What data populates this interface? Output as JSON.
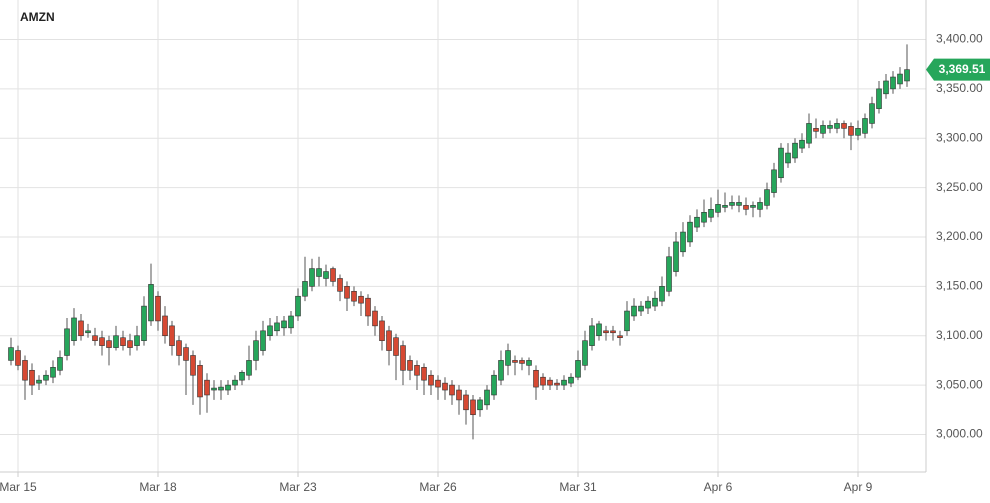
{
  "chart_data": {
    "type": "candlestick",
    "title": "AMZN",
    "categories": [
      null,
      "Mar 15",
      null,
      null,
      null,
      null,
      null,
      null,
      null,
      null,
      null,
      null,
      null,
      null,
      null,
      null,
      null,
      null,
      null,
      null,
      null,
      "Mar 18",
      null,
      null,
      null,
      null,
      null,
      null,
      null,
      null,
      null,
      null,
      null,
      null,
      null,
      null,
      null,
      null,
      null,
      null,
      null,
      "Mar 23",
      null,
      null,
      null,
      null,
      null,
      null,
      null,
      null,
      null,
      null,
      null,
      null,
      null,
      null,
      null,
      null,
      null,
      null,
      null,
      "Mar 26",
      null,
      null,
      null,
      null,
      null,
      null,
      null,
      null,
      null,
      null,
      null,
      null,
      null,
      null,
      null,
      null,
      null,
      null,
      null,
      "Mar 31",
      null,
      null,
      null,
      null,
      null,
      null,
      null,
      null,
      null,
      null,
      null,
      null,
      null,
      null,
      null,
      null,
      null,
      null,
      null,
      "Apr 6",
      null,
      null,
      null,
      null,
      null,
      null,
      null,
      null,
      null,
      null,
      null,
      null,
      null,
      null,
      null,
      null,
      null,
      null,
      null,
      "Apr 9",
      null,
      null,
      null,
      null,
      null,
      null,
      null
    ],
    "ohlc": [
      [
        3075,
        3098,
        3070,
        3088
      ],
      [
        3085,
        3090,
        3065,
        3070
      ],
      [
        3075,
        3080,
        3035,
        3055
      ],
      [
        3065,
        3072,
        3040,
        3050
      ],
      [
        3052,
        3060,
        3045,
        3055
      ],
      [
        3055,
        3065,
        3050,
        3060
      ],
      [
        3058,
        3075,
        3052,
        3068
      ],
      [
        3065,
        3085,
        3060,
        3078
      ],
      [
        3080,
        3118,
        3075,
        3107
      ],
      [
        3095,
        3128,
        3090,
        3118
      ],
      [
        3115,
        3122,
        3095,
        3100
      ],
      [
        3103,
        3112,
        3098,
        3105
      ],
      [
        3100,
        3108,
        3090,
        3095
      ],
      [
        3098,
        3105,
        3080,
        3090
      ],
      [
        3095,
        3100,
        3070,
        3088
      ],
      [
        3088,
        3110,
        3085,
        3100
      ],
      [
        3098,
        3105,
        3085,
        3090
      ],
      [
        3095,
        3102,
        3080,
        3088
      ],
      [
        3090,
        3110,
        3085,
        3100
      ],
      [
        3095,
        3140,
        3090,
        3130
      ],
      [
        3115,
        3173,
        3110,
        3152
      ],
      [
        3140,
        3145,
        3105,
        3115
      ],
      [
        3120,
        3130,
        3092,
        3100
      ],
      [
        3110,
        3115,
        3080,
        3090
      ],
      [
        3095,
        3100,
        3070,
        3080
      ],
      [
        3088,
        3092,
        3040,
        3075
      ],
      [
        3080,
        3085,
        3030,
        3060
      ],
      [
        3070,
        3075,
        3020,
        3038
      ],
      [
        3055,
        3062,
        3022,
        3040
      ],
      [
        3045,
        3055,
        3035,
        3047
      ],
      [
        3045,
        3055,
        3035,
        3048
      ],
      [
        3045,
        3055,
        3040,
        3050
      ],
      [
        3050,
        3060,
        3045,
        3055
      ],
      [
        3055,
        3065,
        3050,
        3063
      ],
      [
        3060,
        3090,
        3055,
        3075
      ],
      [
        3075,
        3105,
        3065,
        3095
      ],
      [
        3085,
        3115,
        3080,
        3105
      ],
      [
        3100,
        3118,
        3095,
        3110
      ],
      [
        3105,
        3120,
        3100,
        3113
      ],
      [
        3108,
        3120,
        3100,
        3115
      ],
      [
        3108,
        3125,
        3102,
        3120
      ],
      [
        3120,
        3148,
        3115,
        3140
      ],
      [
        3140,
        3180,
        3135,
        3155
      ],
      [
        3150,
        3178,
        3145,
        3168
      ],
      [
        3160,
        3180,
        3150,
        3168
      ],
      [
        3158,
        3172,
        3150,
        3165
      ],
      [
        3168,
        3170,
        3150,
        3155
      ],
      [
        3158,
        3162,
        3135,
        3145
      ],
      [
        3150,
        3155,
        3125,
        3138
      ],
      [
        3145,
        3150,
        3130,
        3135
      ],
      [
        3140,
        3145,
        3120,
        3133
      ],
      [
        3138,
        3142,
        3110,
        3120
      ],
      [
        3125,
        3130,
        3100,
        3110
      ],
      [
        3115,
        3120,
        3085,
        3095
      ],
      [
        3105,
        3110,
        3070,
        3085
      ],
      [
        3098,
        3102,
        3055,
        3080
      ],
      [
        3090,
        3095,
        3050,
        3065
      ],
      [
        3075,
        3080,
        3055,
        3065
      ],
      [
        3070,
        3075,
        3045,
        3060
      ],
      [
        3068,
        3072,
        3040,
        3055
      ],
      [
        3060,
        3065,
        3040,
        3050
      ],
      [
        3055,
        3060,
        3035,
        3048
      ],
      [
        3052,
        3058,
        3035,
        3045
      ],
      [
        3050,
        3055,
        3030,
        3040
      ],
      [
        3045,
        3050,
        3020,
        3035
      ],
      [
        3040,
        3045,
        3010,
        3025
      ],
      [
        3035,
        3040,
        2995,
        3020
      ],
      [
        3025,
        3038,
        3018,
        3035
      ],
      [
        3030,
        3050,
        3025,
        3045
      ],
      [
        3040,
        3065,
        3035,
        3060
      ],
      [
        3055,
        3085,
        3050,
        3075
      ],
      [
        3070,
        3092,
        3060,
        3085
      ],
      [
        3075,
        3080,
        3060,
        3073
      ],
      [
        3075,
        3078,
        3065,
        3072
      ],
      [
        3070,
        3078,
        3060,
        3075
      ],
      [
        3065,
        3070,
        3035,
        3048
      ],
      [
        3058,
        3062,
        3045,
        3050
      ],
      [
        3055,
        3058,
        3045,
        3050
      ],
      [
        3052,
        3056,
        3045,
        3050
      ],
      [
        3050,
        3060,
        3045,
        3055
      ],
      [
        3052,
        3062,
        3048,
        3058
      ],
      [
        3058,
        3085,
        3055,
        3075
      ],
      [
        3070,
        3105,
        3065,
        3095
      ],
      [
        3090,
        3118,
        3085,
        3110
      ],
      [
        3100,
        3115,
        3095,
        3112
      ],
      [
        3105,
        3110,
        3095,
        3103
      ],
      [
        3105,
        3110,
        3095,
        3103
      ],
      [
        3100,
        3105,
        3090,
        3098
      ],
      [
        3105,
        3135,
        3100,
        3125
      ],
      [
        3120,
        3138,
        3115,
        3130
      ],
      [
        3125,
        3135,
        3120,
        3130
      ],
      [
        3128,
        3140,
        3122,
        3135
      ],
      [
        3130,
        3145,
        3125,
        3138
      ],
      [
        3135,
        3160,
        3130,
        3150
      ],
      [
        3145,
        3190,
        3140,
        3180
      ],
      [
        3165,
        3205,
        3160,
        3195
      ],
      [
        3185,
        3215,
        3180,
        3205
      ],
      [
        3195,
        3222,
        3190,
        3215
      ],
      [
        3210,
        3228,
        3205,
        3220
      ],
      [
        3215,
        3238,
        3210,
        3225
      ],
      [
        3220,
        3240,
        3215,
        3228
      ],
      [
        3225,
        3248,
        3220,
        3233
      ],
      [
        3230,
        3245,
        3225,
        3232
      ],
      [
        3232,
        3242,
        3228,
        3235
      ],
      [
        3232,
        3242,
        3225,
        3235
      ],
      [
        3232,
        3240,
        3222,
        3228
      ],
      [
        3230,
        3236,
        3220,
        3232
      ],
      [
        3228,
        3240,
        3220,
        3235
      ],
      [
        3232,
        3255,
        3228,
        3248
      ],
      [
        3245,
        3275,
        3240,
        3268
      ],
      [
        3260,
        3295,
        3255,
        3290
      ],
      [
        3275,
        3295,
        3270,
        3285
      ],
      [
        3280,
        3300,
        3275,
        3295
      ],
      [
        3290,
        3305,
        3285,
        3298
      ],
      [
        3295,
        3325,
        3290,
        3315
      ],
      [
        3310,
        3320,
        3300,
        3307
      ],
      [
        3305,
        3318,
        3300,
        3313
      ],
      [
        3310,
        3318,
        3305,
        3313
      ],
      [
        3310,
        3320,
        3305,
        3315
      ],
      [
        3315,
        3318,
        3300,
        3310
      ],
      [
        3312,
        3316,
        3288,
        3303
      ],
      [
        3303,
        3318,
        3298,
        3310
      ],
      [
        3305,
        3325,
        3300,
        3320
      ],
      [
        3315,
        3342,
        3310,
        3335
      ],
      [
        3330,
        3358,
        3325,
        3350
      ],
      [
        3345,
        3365,
        3340,
        3358
      ],
      [
        3350,
        3368,
        3345,
        3362
      ],
      [
        3355,
        3372,
        3350,
        3365
      ],
      [
        3358,
        3395,
        3352,
        3369.51
      ]
    ],
    "up_color": "#26a65b",
    "down_color": "#d64933",
    "ylim": [
      2962,
      3440
    ],
    "yticks": [
      {
        "value": 3000,
        "label": "3,000.00"
      },
      {
        "value": 3050,
        "label": "3,050.00"
      },
      {
        "value": 3100,
        "label": "3,100.00"
      },
      {
        "value": 3150,
        "label": "3,150.00"
      },
      {
        "value": 3200,
        "label": "3,200.00"
      },
      {
        "value": 3250,
        "label": "3,250.00"
      },
      {
        "value": 3300,
        "label": "3,300.00"
      },
      {
        "value": 3350,
        "label": "3,350.00"
      },
      {
        "value": 3400,
        "label": "3,400.00"
      }
    ],
    "last_price": {
      "value": 3369.51,
      "label": "3,369.51"
    },
    "grid": true
  }
}
